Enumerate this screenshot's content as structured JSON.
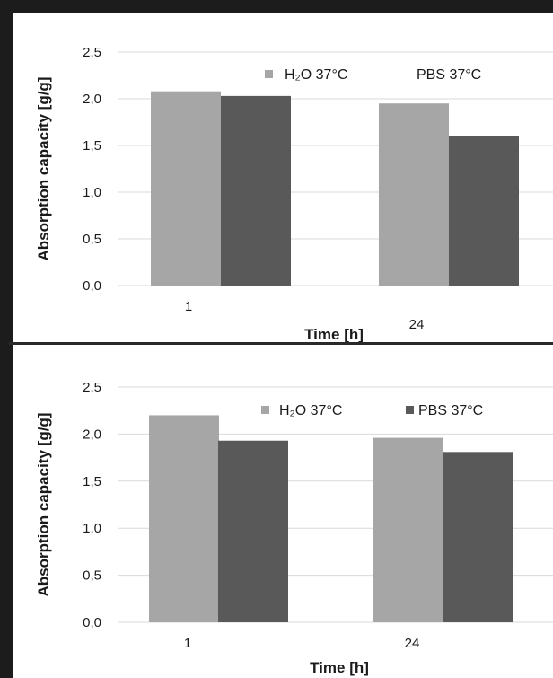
{
  "colors": {
    "series1": "#a6a6a6",
    "series2": "#595959"
  },
  "chart_data": [
    {
      "type": "bar",
      "categories": [
        "1",
        "24"
      ],
      "series": [
        {
          "name": "H₂O 37°C",
          "values": [
            2.08,
            1.95
          ]
        },
        {
          "name": "PBS 37°C",
          "values": [
            2.03,
            1.6
          ]
        }
      ],
      "xlabel": "Time [h]",
      "ylabel": "Absorption capacity [g/g]",
      "ylim": [
        0,
        2.5
      ],
      "yticks": [
        "0,0",
        "0,5",
        "1,0",
        "1,5",
        "2,0",
        "2,5"
      ],
      "grid": true,
      "legend": "top-center",
      "legend_markers": [
        true,
        false
      ]
    },
    {
      "type": "bar",
      "categories": [
        "1",
        "24"
      ],
      "series": [
        {
          "name": "H₂O 37°C",
          "values": [
            2.2,
            1.96
          ]
        },
        {
          "name": "PBS 37°C",
          "values": [
            1.93,
            1.81
          ]
        }
      ],
      "xlabel": "Time [h]",
      "ylabel": "Absorption capacity [g/g]",
      "ylim": [
        0,
        2.5
      ],
      "yticks": [
        "0,0",
        "0,5",
        "1,0",
        "1,5",
        "2,0",
        "2,5"
      ],
      "grid": true,
      "legend": "top-center",
      "legend_markers": [
        true,
        true
      ]
    }
  ]
}
